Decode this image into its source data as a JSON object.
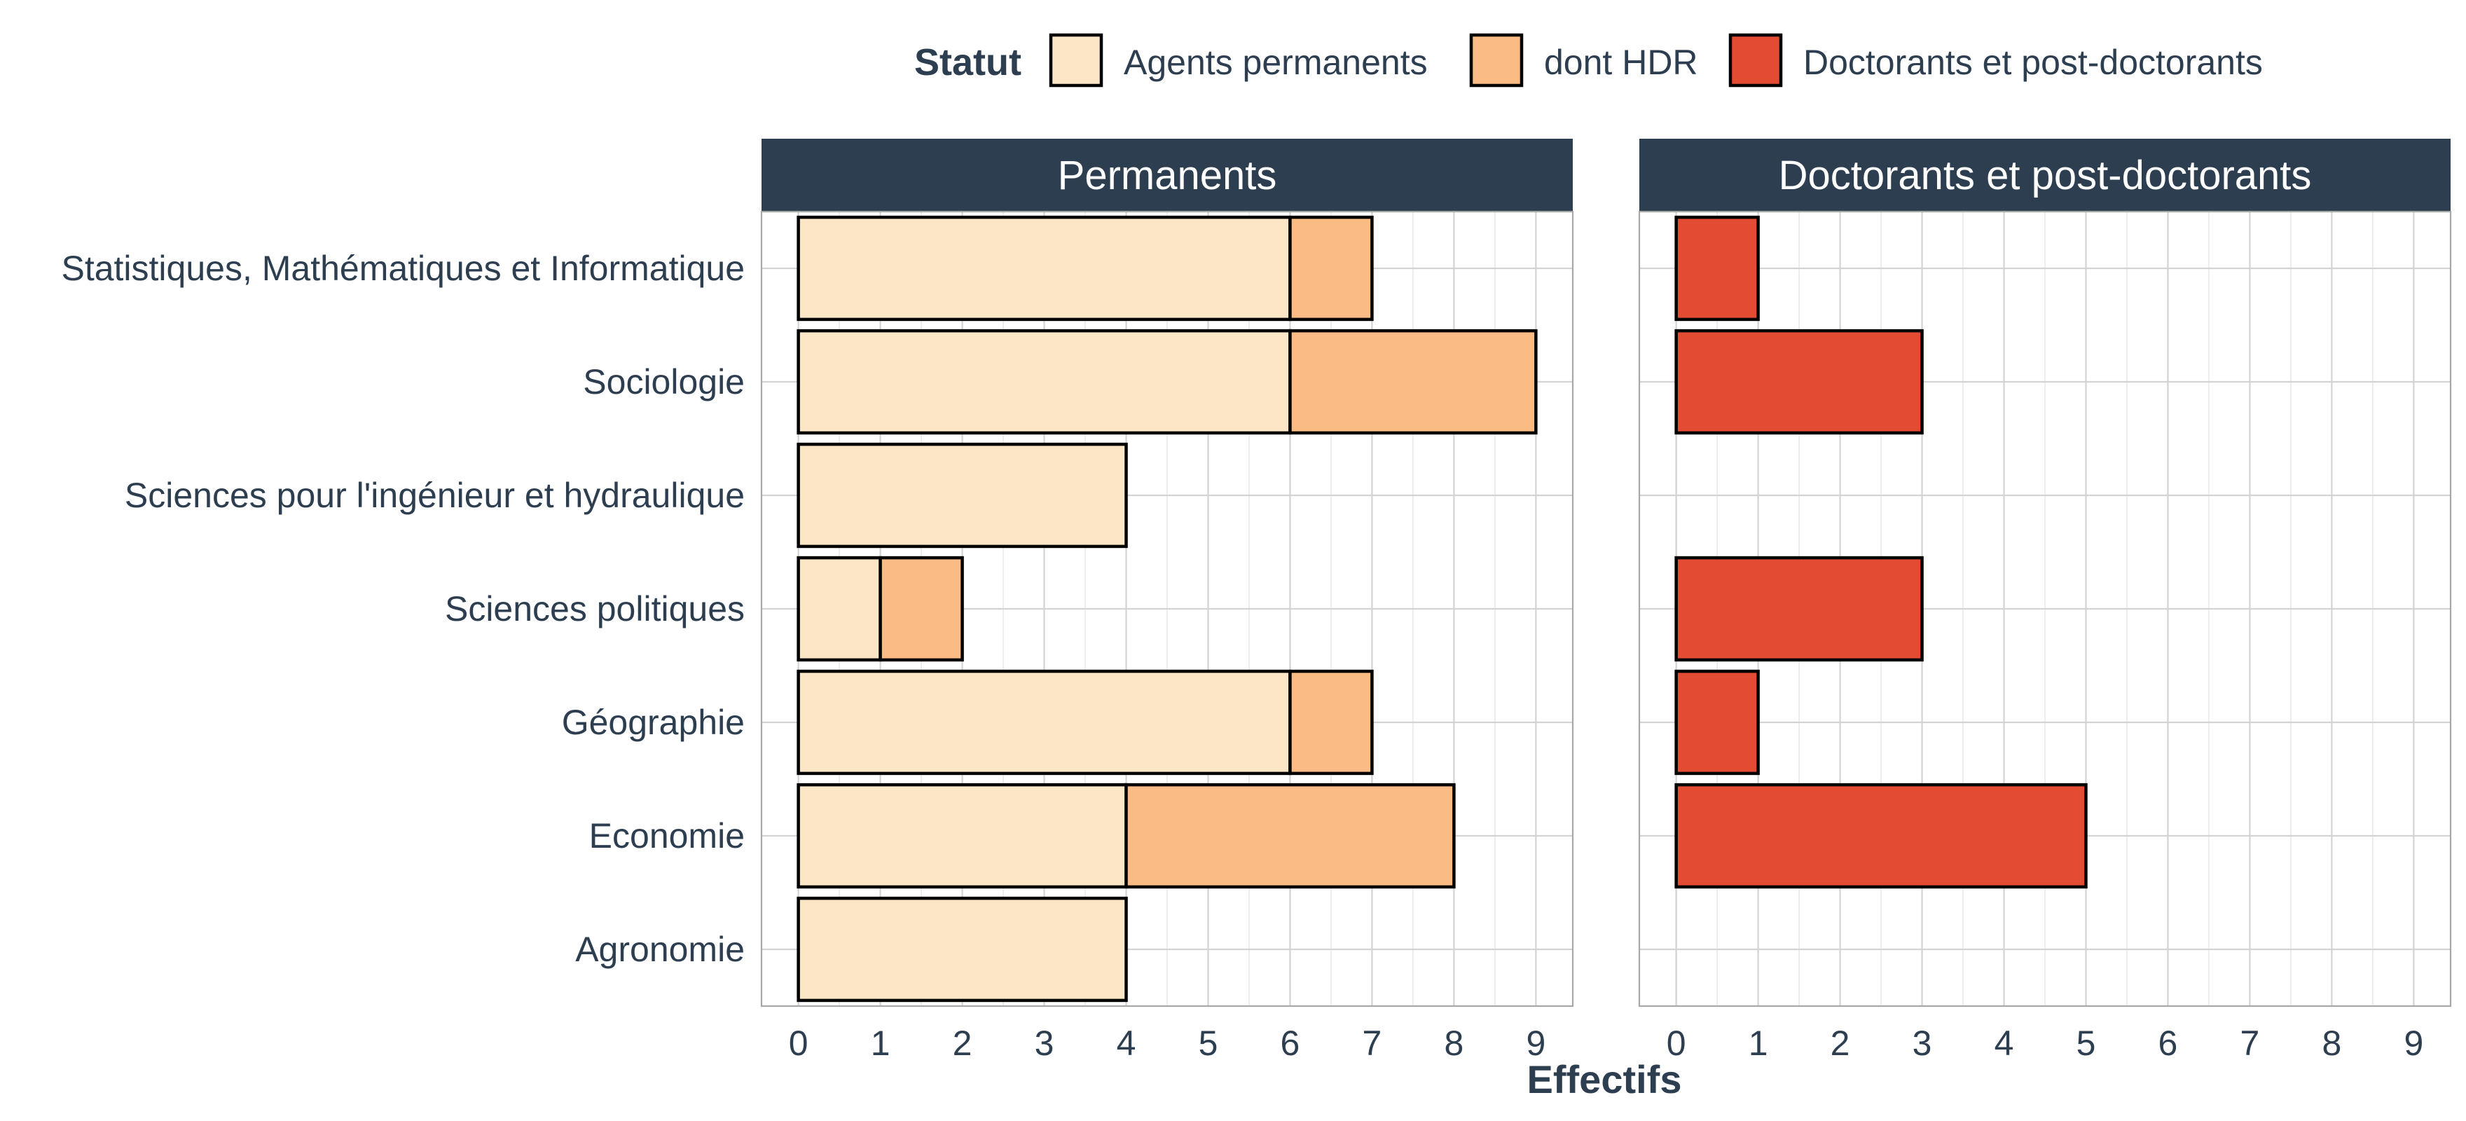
{
  "colors": {
    "agents_permanents": "#fde6c6",
    "dont_hdr": "#fbbb84",
    "doctorants": "#e34b33",
    "strip": "#2d3e50",
    "text": "#2d3e50"
  },
  "chart_data": {
    "type": "bar",
    "orientation": "horizontal",
    "stacked": true,
    "legend": {
      "title": "Statut",
      "position": "top",
      "entries": [
        "Agents permanents",
        "dont HDR",
        "Doctorants et post-doctorants"
      ]
    },
    "categories": [
      "Statistiques, Mathématiques et Informatique",
      "Sociologie",
      "Sciences pour l'ingénieur et hydraulique",
      "Sciences politiques",
      "Géographie",
      "Economie",
      "Agronomie"
    ],
    "xlabel": "Effectifs",
    "xlim": [
      -0.45,
      9.45
    ],
    "xticks": [
      "0",
      "1",
      "2",
      "3",
      "4",
      "5",
      "6",
      "7",
      "8",
      "9"
    ],
    "panels": [
      {
        "title": "Permanents",
        "series": [
          {
            "name": "Agents permanents",
            "values": [
              6,
              6,
              4,
              1,
              6,
              4,
              4
            ]
          },
          {
            "name": "dont HDR",
            "values": [
              1,
              3,
              0,
              1,
              1,
              4,
              0
            ]
          }
        ]
      },
      {
        "title": "Doctorants et post-doctorants",
        "series": [
          {
            "name": "Doctorants et post-doctorants",
            "values": [
              1,
              3,
              0,
              3,
              1,
              5,
              0
            ]
          }
        ]
      }
    ]
  }
}
